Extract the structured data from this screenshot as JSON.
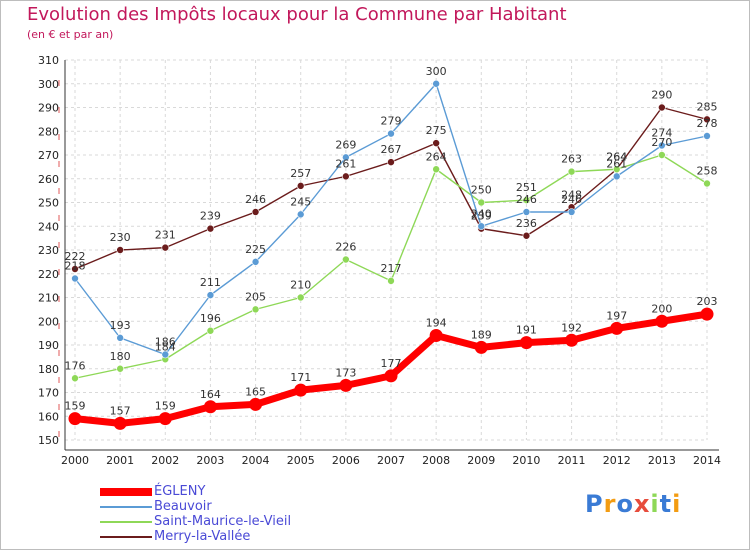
{
  "title": "Evolution des Impôts locaux pour la Commune par Habitant",
  "subtitle": "(en € et par an)",
  "logo": "Proxiti",
  "chart_data": {
    "type": "line",
    "title": "Evolution des Impôts locaux pour la Commune par Habitant",
    "ylabel": "(en € et par an)",
    "xlabel": "",
    "ylim": [
      150,
      310
    ],
    "yticks": [
      150,
      160,
      170,
      180,
      190,
      200,
      210,
      220,
      230,
      240,
      250,
      260,
      270,
      280,
      290,
      300,
      310
    ],
    "x": [
      "2000",
      "2001",
      "2002",
      "2003",
      "2004",
      "2005",
      "2006",
      "2007",
      "2008",
      "2009",
      "2010",
      "2011",
      "2012",
      "2013",
      "2014"
    ],
    "grid": true,
    "legend_position": "bottom-left",
    "series": [
      {
        "name": "ÉGLENY",
        "color": "#ff0000",
        "values": [
          159,
          157,
          159,
          164,
          165,
          171,
          173,
          177,
          194,
          189,
          191,
          192,
          197,
          200,
          203
        ]
      },
      {
        "name": "Beauvoir",
        "color": "#5b9bd5",
        "values": [
          218,
          193,
          186,
          211,
          225,
          245,
          269,
          279,
          300,
          240,
          246,
          246,
          261,
          274,
          278
        ]
      },
      {
        "name": "Saint-Maurice-le-Vieil",
        "color": "#8ed857",
        "values": [
          176,
          180,
          184,
          196,
          205,
          210,
          226,
          217,
          264,
          250,
          251,
          263,
          264,
          270,
          258
        ]
      },
      {
        "name": "Merry-la-Vallée",
        "color": "#6b1c1c",
        "values": [
          222,
          230,
          231,
          239,
          246,
          257,
          261,
          267,
          275,
          239,
          236,
          248,
          264,
          290,
          285
        ]
      }
    ]
  }
}
